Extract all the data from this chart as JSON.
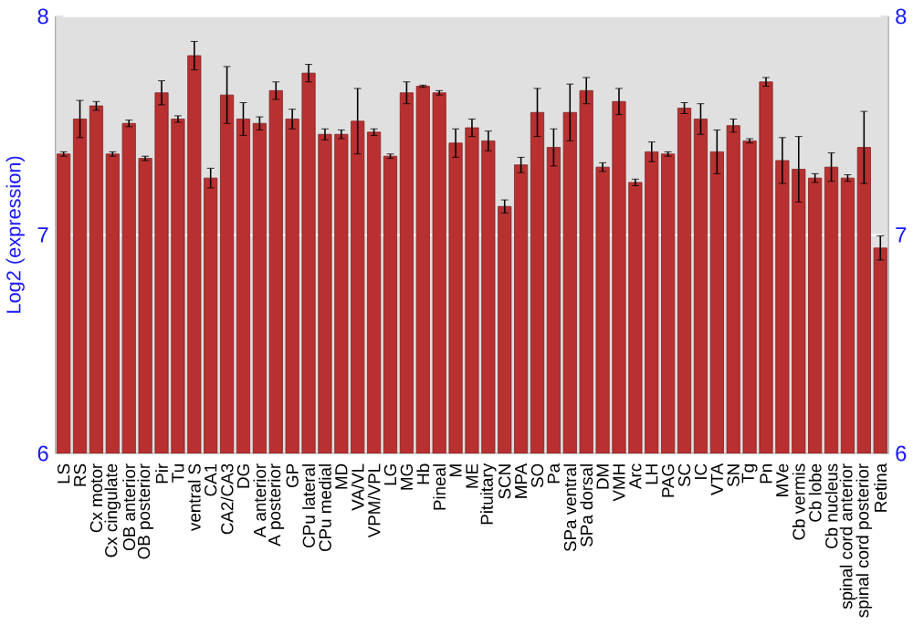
{
  "chart_data": {
    "type": "bar",
    "ylabel": "Log2 (expression)",
    "categories": [
      "LS",
      "RS",
      "Cx motor",
      "Cx cingulate",
      "OB anterior",
      "OB posterior",
      "Pir",
      "Tu",
      "ventral S",
      "CA1",
      "CA2/CA3",
      "DG",
      "A anterior",
      "A posterior",
      "GP",
      "CPu lateral",
      "CPu medial",
      "MD",
      "VA/VL",
      "VPM/VPL",
      "LG",
      "MG",
      "Hb",
      "Pineal",
      "M",
      "ME",
      "Pituitary",
      "SCN",
      "MPA",
      "SO",
      "Pa",
      "SPa ventral",
      "SPa dorsal",
      "DM",
      "VMH",
      "Arc",
      "LH",
      "PAG",
      "SC",
      "IC",
      "VTA",
      "SN",
      "Tg",
      "Pn",
      "MVe",
      "Cb vermis",
      "Cb lobe",
      "Cb nucleus",
      "spinal cord anterior",
      "spinal cord posterior",
      "Retina"
    ],
    "values": [
      7.37,
      7.53,
      7.59,
      7.37,
      7.51,
      7.35,
      7.65,
      7.53,
      7.82,
      7.26,
      7.64,
      7.53,
      7.51,
      7.66,
      7.53,
      7.74,
      7.46,
      7.46,
      7.52,
      7.47,
      7.36,
      7.65,
      7.68,
      7.65,
      7.42,
      7.49,
      7.43,
      7.13,
      7.32,
      7.56,
      7.4,
      7.56,
      7.66,
      7.31,
      7.61,
      7.24,
      7.38,
      7.37,
      7.58,
      7.53,
      7.38,
      7.5,
      7.43,
      7.7,
      7.34,
      7.3,
      7.26,
      7.31,
      7.26,
      7.4,
      6.94
    ],
    "errors": [
      0.01,
      0.085,
      0.02,
      0.01,
      0.015,
      0.01,
      0.055,
      0.015,
      0.065,
      0.045,
      0.13,
      0.075,
      0.03,
      0.04,
      0.045,
      0.04,
      0.025,
      0.02,
      0.15,
      0.015,
      0.01,
      0.05,
      0.005,
      0.01,
      0.065,
      0.04,
      0.045,
      0.03,
      0.035,
      0.11,
      0.085,
      0.13,
      0.06,
      0.02,
      0.06,
      0.015,
      0.045,
      0.01,
      0.025,
      0.07,
      0.1,
      0.03,
      0.01,
      0.02,
      0.105,
      0.15,
      0.02,
      0.065,
      0.015,
      0.165,
      0.055
    ],
    "color": "#b83030",
    "ylim": [
      6,
      8
    ],
    "yticks": [
      6,
      7,
      8
    ],
    "y2lim": [
      6,
      8
    ],
    "y2ticks": [
      6,
      7,
      8
    ],
    "grid": "y"
  }
}
